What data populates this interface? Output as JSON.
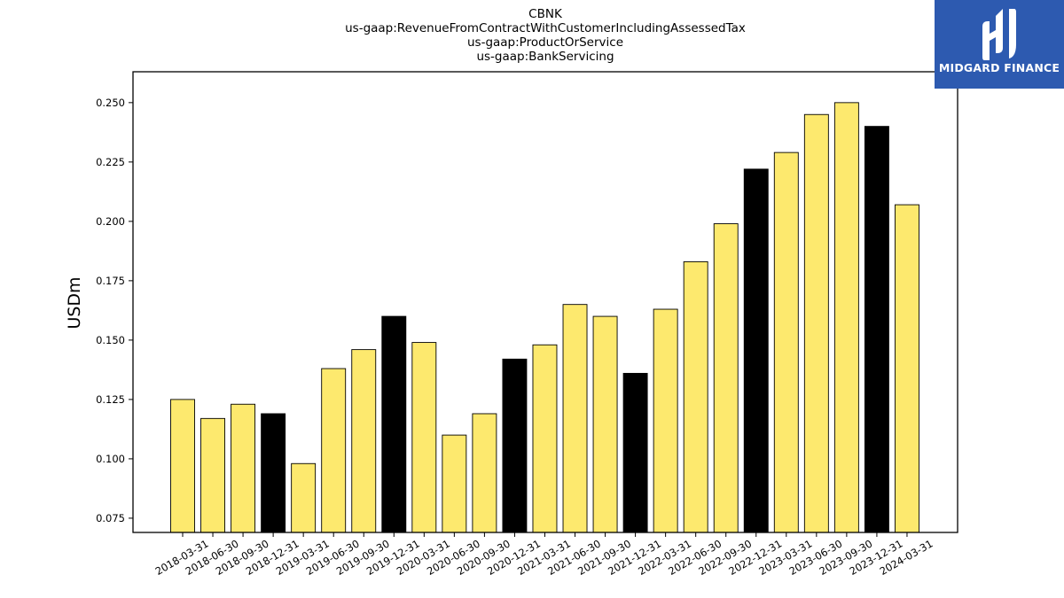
{
  "chart_data": {
    "type": "bar",
    "title_lines": [
      "CBNK",
      "us-gaap:RevenueFromContractWithCustomerIncludingAssessedTax",
      "us-gaap:ProductOrService",
      "us-gaap:BankServicing"
    ],
    "xlabel": "",
    "ylabel": "USDm",
    "categories": [
      "2018-03-31",
      "2018-06-30",
      "2018-09-30",
      "2018-12-31",
      "2019-03-31",
      "2019-06-30",
      "2019-09-30",
      "2019-12-31",
      "2020-03-31",
      "2020-06-30",
      "2020-09-30",
      "2020-12-31",
      "2021-03-31",
      "2021-06-30",
      "2021-09-30",
      "2021-12-31",
      "2022-03-31",
      "2022-06-30",
      "2022-09-30",
      "2022-12-31",
      "2023-03-31",
      "2023-06-30",
      "2023-09-30",
      "2023-12-31",
      "2024-03-31"
    ],
    "values": [
      0.125,
      0.117,
      0.123,
      0.119,
      0.098,
      0.138,
      0.146,
      0.16,
      0.149,
      0.11,
      0.119,
      0.142,
      0.148,
      0.165,
      0.16,
      0.136,
      0.163,
      0.183,
      0.199,
      0.222,
      0.229,
      0.245,
      0.25,
      0.24,
      0.207
    ],
    "highlight": [
      false,
      false,
      false,
      true,
      false,
      false,
      false,
      true,
      false,
      false,
      false,
      true,
      false,
      false,
      false,
      true,
      false,
      false,
      false,
      true,
      false,
      false,
      false,
      true,
      false
    ],
    "colors": {
      "regular": "#fde96e",
      "highlight": "#000000",
      "edge": "#000000"
    },
    "ylim": [
      0.069,
      0.263
    ],
    "yticks": [
      "0.075",
      "0.100",
      "0.125",
      "0.150",
      "0.175",
      "0.200",
      "0.225",
      "0.250"
    ],
    "grid": false,
    "legend": "none"
  },
  "logo": {
    "text": "MIDGARD FINANCE",
    "background": "#2d5ab0"
  }
}
